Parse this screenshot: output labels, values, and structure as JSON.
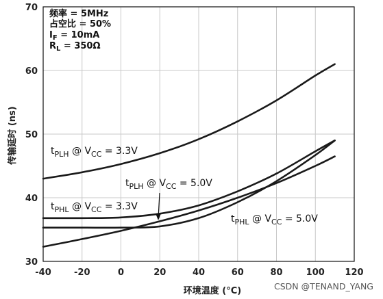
{
  "chart_data": {
    "type": "line",
    "xlabel": "环境温度 (°C)",
    "ylabel": "传输延时 (ns)",
    "xlim": [
      -40,
      120
    ],
    "ylim": [
      30,
      70
    ],
    "xticks": [
      -40,
      -20,
      0,
      20,
      40,
      60,
      80,
      100,
      120
    ],
    "yticks": [
      30,
      40,
      50,
      60,
      70
    ],
    "grid": true,
    "conditions": [
      "频率 = 5MHz",
      "占空比 = 50%",
      "IF = 10mA",
      "RL = 350Ω"
    ],
    "series": [
      {
        "name": "tPLH @ VCC = 3.3V",
        "x": [
          -40,
          -20,
          0,
          20,
          40,
          60,
          80,
          100,
          110
        ],
        "y": [
          43.0,
          44.0,
          45.3,
          47.0,
          49.2,
          52.0,
          55.3,
          59.2,
          61.0
        ]
      },
      {
        "name": "tPLH @ VCC = 5.0V",
        "x": [
          -40,
          -20,
          0,
          20,
          40,
          60,
          80,
          100,
          110
        ],
        "y": [
          35.3,
          35.3,
          35.3,
          35.5,
          36.8,
          39.3,
          42.6,
          46.7,
          49.0
        ]
      },
      {
        "name": "tPHL @ VCC = 3.3V",
        "x": [
          -40,
          -20,
          0,
          20,
          40,
          60,
          80,
          100,
          110
        ],
        "y": [
          36.8,
          36.8,
          36.9,
          37.5,
          38.8,
          41.0,
          43.8,
          47.3,
          49.0
        ]
      },
      {
        "name": "tPHL @ VCC = 5.0V",
        "x": [
          -40,
          -20,
          0,
          20,
          40,
          60,
          80,
          100,
          110
        ],
        "y": [
          32.3,
          33.5,
          34.8,
          36.3,
          38.0,
          40.0,
          42.3,
          45.0,
          46.5
        ]
      }
    ]
  },
  "watermark": "CSDN @TENAND_YANG"
}
